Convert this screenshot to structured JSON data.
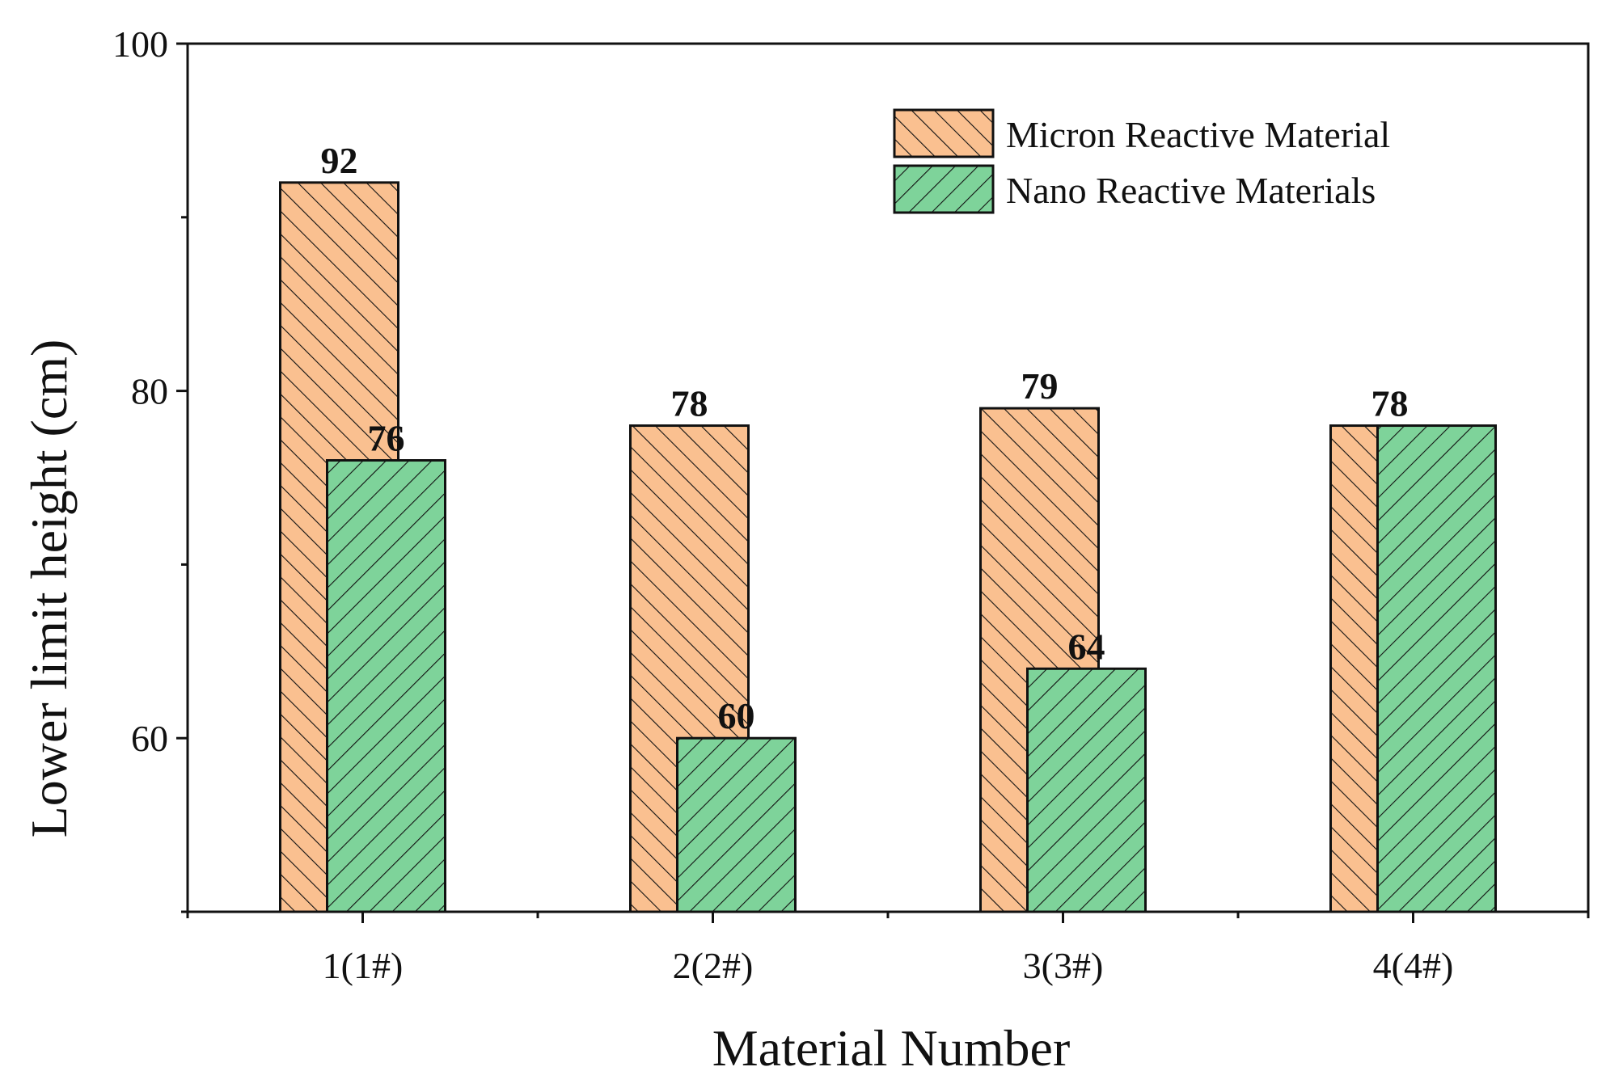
{
  "chart_data": {
    "type": "bar",
    "title": "",
    "xlabel": "Material Number",
    "ylabel": "Lower limit height (cm)",
    "categories": [
      "1(1#)",
      "2(2#)",
      "3(3#)",
      "4(4#)"
    ],
    "ylim": [
      50,
      100
    ],
    "yticks": [
      60,
      80,
      100
    ],
    "ytick_labels": [
      "60",
      "80",
      "100"
    ],
    "grid": false,
    "legend_position": "top-right",
    "series": [
      {
        "name": "Micron Reactive Material",
        "values": [
          92,
          78,
          79,
          78
        ],
        "value_labels": [
          "92",
          "78",
          "79",
          "78"
        ],
        "color": "#FAC090",
        "hatch": "backslash"
      },
      {
        "name": "Nano Reactive Materials",
        "values": [
          76,
          60,
          64,
          78
        ],
        "value_labels": [
          "76",
          "60",
          "64",
          ""
        ],
        "color": "#7ED39A",
        "hatch": "slash"
      }
    ]
  }
}
